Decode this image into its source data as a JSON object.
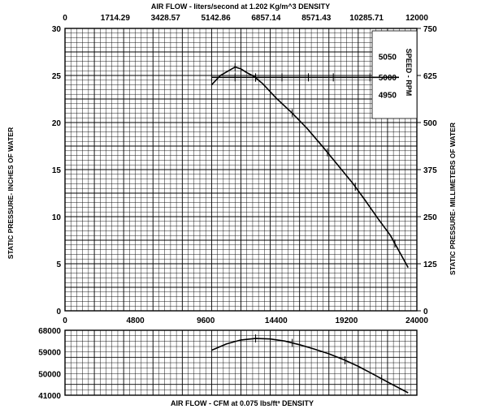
{
  "chart_data": [
    {
      "type": "line",
      "title": "AIR FLOW - liters/second at  1.202 Kg/m^3   DENSITY",
      "ylabel": "STATIC PRESSURE- INCHES OF WATER",
      "y2label": "STATIC PRESSURE- MILLIMETERS OF WATER",
      "xlim": [
        0,
        24000
      ],
      "x_ticks": [
        "0",
        "4800",
        "9600",
        "14400",
        "19200",
        "24000"
      ],
      "ylim": [
        0,
        30
      ],
      "y_ticks": [
        "0",
        "5",
        "10",
        "15",
        "20",
        "25",
        "30"
      ],
      "x2lim": [
        0,
        12000
      ],
      "x2_ticks": [
        "0",
        "1714.29",
        "3428.57",
        "5142.86",
        "6857.14",
        "8571.43",
        "10285.71",
        "12000"
      ],
      "y2lim": [
        0,
        750
      ],
      "y2_ticks": [
        "0",
        "125",
        "250",
        "375",
        "500",
        "625",
        "750"
      ],
      "grid": true,
      "series": [
        {
          "x": [
            10000,
            10600,
            11600,
            12000,
            12400,
            12900,
            13500,
            14400,
            15500,
            16500,
            17600,
            18600,
            19600,
            20400,
            21300,
            22200,
            23400
          ],
          "y": [
            24.0,
            25.0,
            25.9,
            25.7,
            25.3,
            24.9,
            24.1,
            22.6,
            21.0,
            19.4,
            17.4,
            15.5,
            13.6,
            11.9,
            9.9,
            8.0,
            4.6
          ],
          "markers_x": [
            11600,
            13000,
            15500,
            17900,
            19800,
            22500
          ]
        }
      ],
      "speed_panel": {
        "label": "SPEED - RPM",
        "ticks": [
          "5050",
          "5000",
          "4950"
        ],
        "reference_value": 5000,
        "line_x": [
          10000,
          20800
        ],
        "marker_x": [
          10000,
          11600,
          13000,
          14800,
          16600,
          18300,
          20800
        ]
      }
    },
    {
      "type": "line",
      "xlabel": "AIR FLOW - CFM at 0.075 lbs/ft³ DENSITY",
      "ylim": [
        41000,
        68000
      ],
      "y_ticks": [
        "41000",
        "50000",
        "59000",
        "68000"
      ],
      "xlim": [
        0,
        24000
      ],
      "grid": true,
      "series": [
        {
          "x": [
            10000,
            11000,
            12000,
            13000,
            14000,
            15000,
            16000,
            17000,
            18000,
            19000,
            20000,
            21000,
            22000,
            23400
          ],
          "y": [
            59700,
            62300,
            64000,
            64600,
            64400,
            63500,
            62000,
            60200,
            58200,
            55800,
            53000,
            49800,
            46500,
            42000
          ],
          "markers_x": [
            13000,
            15500,
            19100,
            21600
          ]
        }
      ]
    }
  ]
}
